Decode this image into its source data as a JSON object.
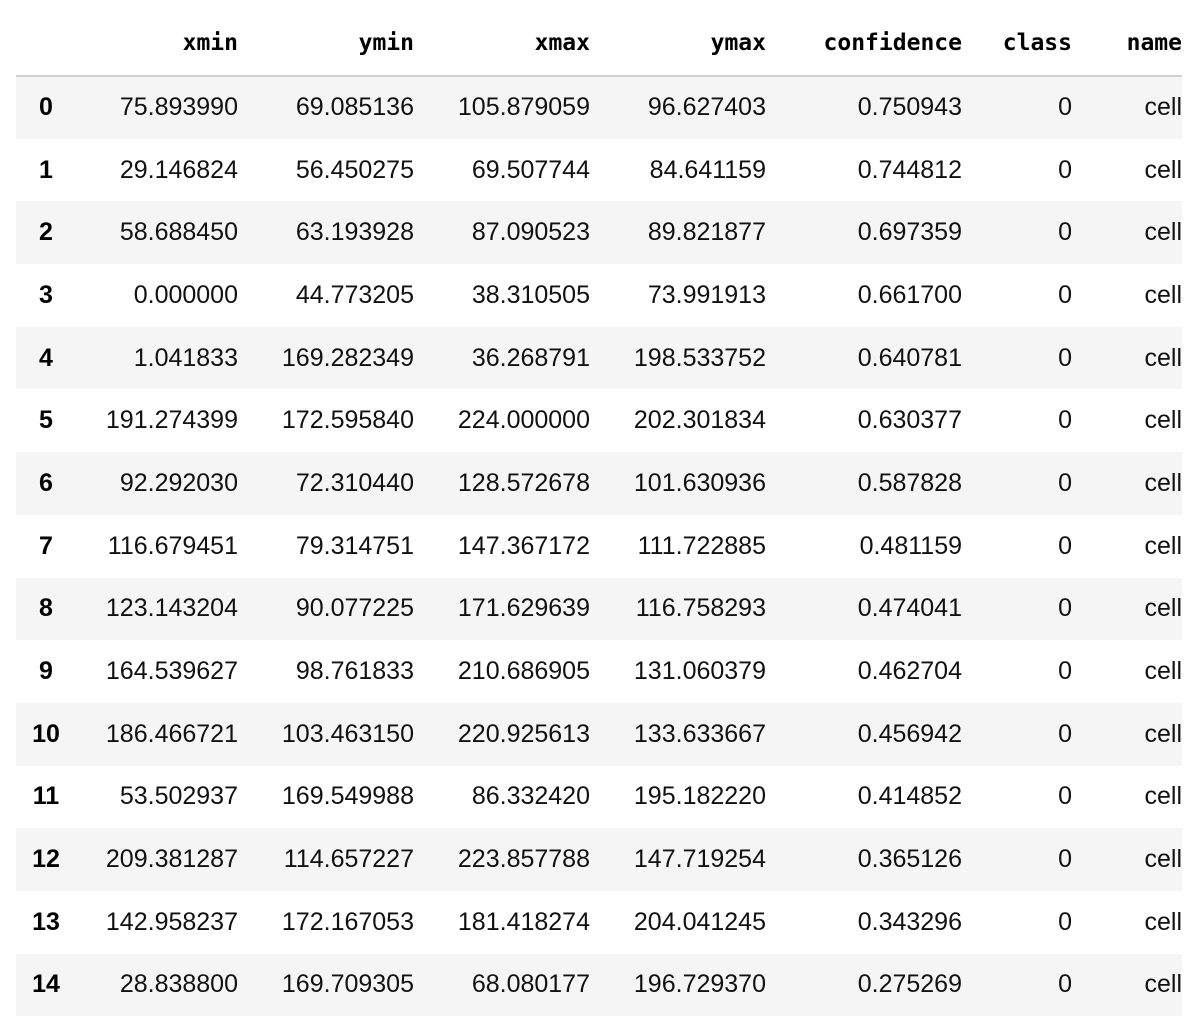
{
  "dataframe": {
    "columns": [
      "xmin",
      "ymin",
      "xmax",
      "ymax",
      "confidence",
      "class",
      "name"
    ],
    "rows": [
      {
        "index": "0",
        "cells": [
          "75.893990",
          "69.085136",
          "105.879059",
          "96.627403",
          "0.750943",
          "0",
          "cell"
        ]
      },
      {
        "index": "1",
        "cells": [
          "29.146824",
          "56.450275",
          "69.507744",
          "84.641159",
          "0.744812",
          "0",
          "cell"
        ]
      },
      {
        "index": "2",
        "cells": [
          "58.688450",
          "63.193928",
          "87.090523",
          "89.821877",
          "0.697359",
          "0",
          "cell"
        ]
      },
      {
        "index": "3",
        "cells": [
          "0.000000",
          "44.773205",
          "38.310505",
          "73.991913",
          "0.661700",
          "0",
          "cell"
        ]
      },
      {
        "index": "4",
        "cells": [
          "1.041833",
          "169.282349",
          "36.268791",
          "198.533752",
          "0.640781",
          "0",
          "cell"
        ]
      },
      {
        "index": "5",
        "cells": [
          "191.274399",
          "172.595840",
          "224.000000",
          "202.301834",
          "0.630377",
          "0",
          "cell"
        ]
      },
      {
        "index": "6",
        "cells": [
          "92.292030",
          "72.310440",
          "128.572678",
          "101.630936",
          "0.587828",
          "0",
          "cell"
        ]
      },
      {
        "index": "7",
        "cells": [
          "116.679451",
          "79.314751",
          "147.367172",
          "111.722885",
          "0.481159",
          "0",
          "cell"
        ]
      },
      {
        "index": "8",
        "cells": [
          "123.143204",
          "90.077225",
          "171.629639",
          "116.758293",
          "0.474041",
          "0",
          "cell"
        ]
      },
      {
        "index": "9",
        "cells": [
          "164.539627",
          "98.761833",
          "210.686905",
          "131.060379",
          "0.462704",
          "0",
          "cell"
        ]
      },
      {
        "index": "10",
        "cells": [
          "186.466721",
          "103.463150",
          "220.925613",
          "133.633667",
          "0.456942",
          "0",
          "cell"
        ]
      },
      {
        "index": "11",
        "cells": [
          "53.502937",
          "169.549988",
          "86.332420",
          "195.182220",
          "0.414852",
          "0",
          "cell"
        ]
      },
      {
        "index": "12",
        "cells": [
          "209.381287",
          "114.657227",
          "223.857788",
          "147.719254",
          "0.365126",
          "0",
          "cell"
        ]
      },
      {
        "index": "13",
        "cells": [
          "142.958237",
          "172.167053",
          "181.418274",
          "204.041245",
          "0.343296",
          "0",
          "cell"
        ]
      },
      {
        "index": "14",
        "cells": [
          "28.838800",
          "169.709305",
          "68.080177",
          "196.729370",
          "0.275269",
          "0",
          "cell"
        ]
      }
    ]
  }
}
